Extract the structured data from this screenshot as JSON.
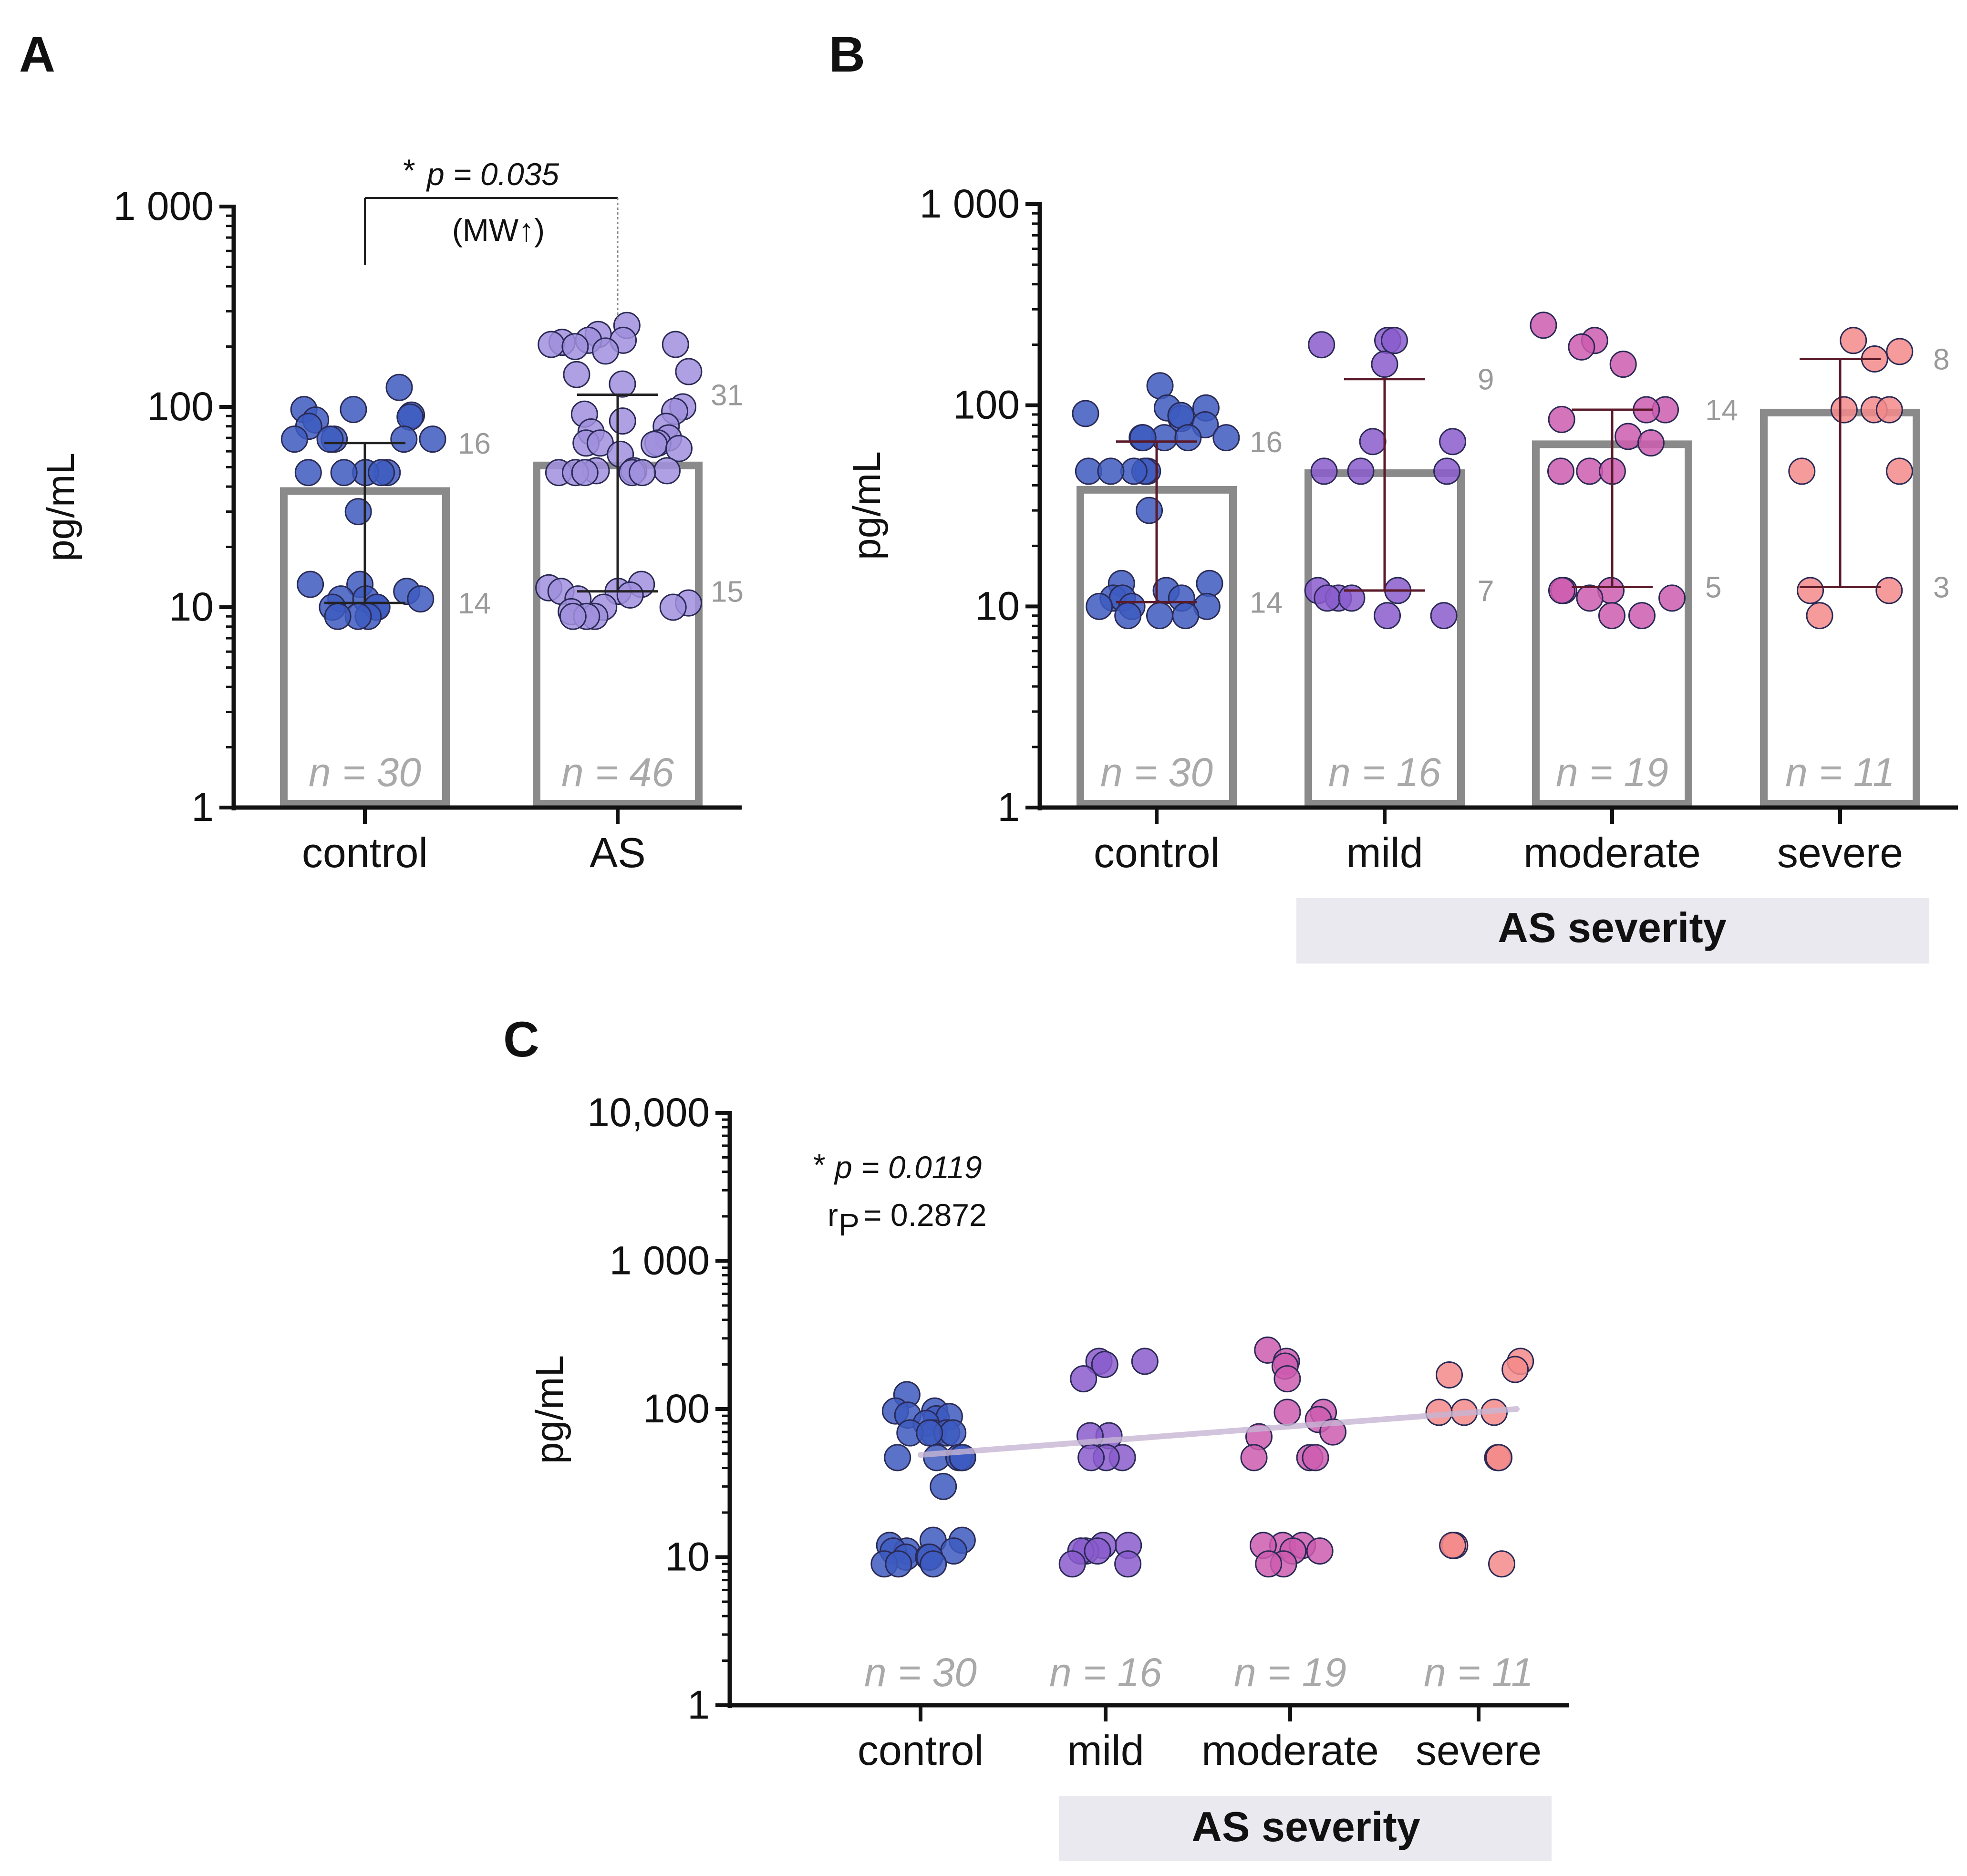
{
  "panel_letters": {
    "A": "A",
    "B": "B",
    "C": "C"
  },
  "chart_data": [
    {
      "panel": "A",
      "type": "bar",
      "log_scale": true,
      "ylim": [
        1,
        1000
      ],
      "yticks": [
        "1",
        "10",
        "100",
        "1 000"
      ],
      "ylabel": "pg/mL",
      "categories": [
        "control",
        "AS"
      ],
      "colors": [
        "#3d5bbf",
        "#a08fdd"
      ],
      "bar_values": [
        38,
        51
      ],
      "quartiles": [
        [
          10.5,
          66
        ],
        [
          12,
          115
        ]
      ],
      "q_labels": [
        [
          "14",
          "16"
        ],
        [
          "15",
          "31"
        ]
      ],
      "n_labels": [
        "n = 30",
        "n = 46"
      ],
      "points": [
        [
          125,
          97,
          97,
          91,
          86,
          89,
          80,
          69,
          69,
          69,
          69,
          69,
          47,
          47,
          47,
          47,
          47,
          30,
          13,
          13,
          12,
          11,
          11,
          11,
          10,
          10,
          10,
          9,
          9,
          9
        ],
        [
          255,
          230,
          215,
          215,
          210,
          205,
          205,
          200,
          190,
          150,
          145,
          130,
          100,
          95,
          92,
          85,
          80,
          75,
          70,
          66,
          66,
          66,
          65,
          62,
          58,
          48,
          48,
          48,
          47,
          47,
          47,
          47,
          47,
          13,
          12.5,
          12,
          12,
          11.5,
          11,
          10.5,
          10,
          10,
          9.5,
          9,
          9,
          9
        ]
      ],
      "annotation": {
        "star": "*",
        "p_text": "p = 0.035",
        "sub": "(MW↑)"
      }
    },
    {
      "panel": "B",
      "type": "bar",
      "log_scale": true,
      "ylim": [
        1,
        1000
      ],
      "yticks": [
        "1",
        "10",
        "100",
        "1 000"
      ],
      "ylabel": "pg/mL",
      "categories": [
        "control",
        "mild",
        "moderate",
        "severe"
      ],
      "colors": [
        "#3d5bbf",
        "#8a5ccd",
        "#cc5caf",
        "#f48a8a"
      ],
      "bar_values": [
        38,
        46,
        64,
        92
      ],
      "quartiles": [
        [
          10.5,
          66
        ],
        [
          12,
          135
        ],
        [
          12.5,
          95
        ],
        [
          12.5,
          170
        ]
      ],
      "q_labels": [
        [
          "14",
          "16"
        ],
        [
          "7",
          "9"
        ],
        [
          "5",
          "14"
        ],
        [
          "3",
          "8"
        ]
      ],
      "n_labels": [
        "n = 30",
        "n = 16",
        "n = 19",
        "n = 11"
      ],
      "points": [
        [
          125,
          97,
          97,
          91,
          86,
          89,
          80,
          69,
          69,
          69,
          69,
          69,
          47,
          47,
          47,
          47,
          47,
          30,
          13,
          13,
          12,
          11,
          11,
          11,
          10,
          10,
          10,
          9,
          9,
          9
        ],
        [
          210,
          210,
          200,
          160,
          66,
          66,
          47,
          47,
          47,
          12,
          12,
          11,
          11,
          11,
          9,
          9
        ],
        [
          250,
          210,
          195,
          160,
          95,
          95,
          85,
          70,
          65,
          47,
          47,
          47,
          12,
          12,
          12,
          11,
          11,
          9,
          9
        ],
        [
          210,
          185,
          170,
          95,
          95,
          95,
          47,
          47,
          12,
          12,
          9
        ]
      ],
      "group_label": "AS severity"
    },
    {
      "panel": "C",
      "type": "scatter",
      "log_scale": true,
      "ylim": [
        1,
        10000
      ],
      "yticks": [
        "1",
        "10",
        "100",
        "1 000",
        "10,000"
      ],
      "ylabel": "pg/mL",
      "categories": [
        "control",
        "mild",
        "moderate",
        "severe"
      ],
      "colors": [
        "#3d5bbf",
        "#8a5ccd",
        "#cc5caf",
        "#f48a8a"
      ],
      "n_labels": [
        "n = 30",
        "n = 16",
        "n = 19",
        "n = 11"
      ],
      "points": [
        [
          125,
          97,
          97,
          91,
          86,
          89,
          80,
          69,
          69,
          69,
          69,
          69,
          47,
          47,
          47,
          47,
          47,
          30,
          13,
          13,
          12,
          11,
          11,
          11,
          10,
          10,
          10,
          9,
          9,
          9
        ],
        [
          210,
          210,
          200,
          160,
          66,
          66,
          47,
          47,
          47,
          12,
          12,
          11,
          11,
          11,
          9,
          9
        ],
        [
          250,
          210,
          195,
          160,
          95,
          95,
          85,
          70,
          65,
          47,
          47,
          47,
          12,
          12,
          12,
          11,
          11,
          9,
          9
        ],
        [
          210,
          185,
          170,
          95,
          95,
          95,
          47,
          47,
          12,
          12,
          9
        ]
      ],
      "trend": {
        "start": 49,
        "end": 100
      },
      "annotation": {
        "star": "*",
        "p_text": "p = 0.0119",
        "r_text": "r",
        "r_sub": "P",
        "r_value": "= 0.2872"
      },
      "group_label": "AS severity"
    }
  ]
}
